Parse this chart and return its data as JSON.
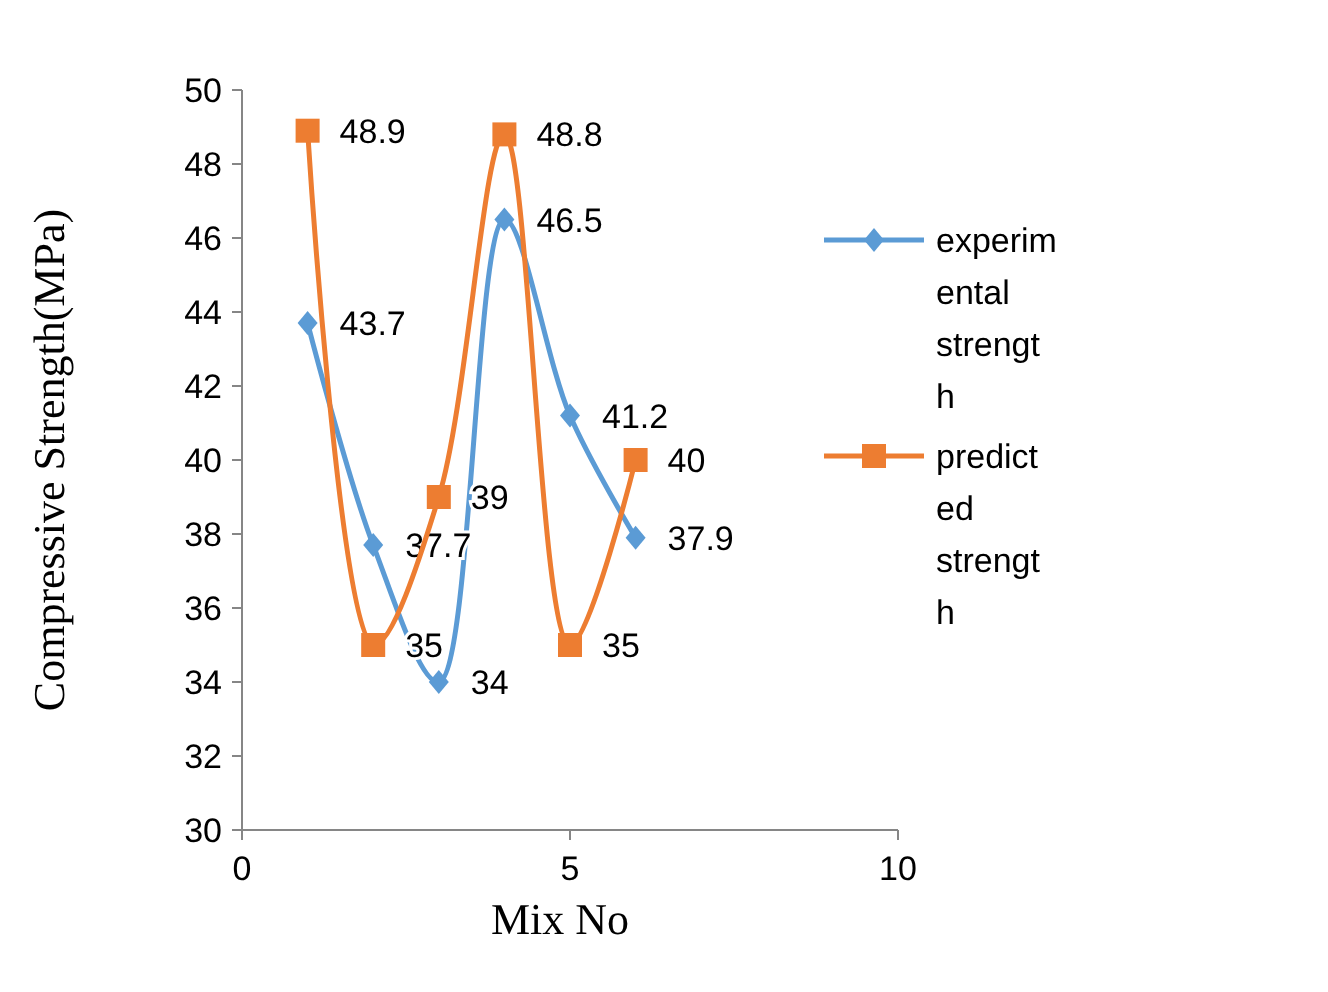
{
  "chart_data": {
    "type": "line",
    "xlabel": "Mix No",
    "ylabel": "Compressive Strength(MPa)",
    "x": [
      1,
      2,
      3,
      4,
      5,
      6
    ],
    "xlim": [
      0,
      10
    ],
    "xticks": [
      0,
      5,
      10
    ],
    "ylim": [
      30,
      50
    ],
    "yticks": [
      30,
      32,
      34,
      36,
      38,
      40,
      42,
      44,
      46,
      48,
      50
    ],
    "data_labels": true,
    "legend": "right",
    "line_style": "solid",
    "series": [
      {
        "name": "experimental strength",
        "color": "#5b9bd5",
        "marker": "diamond",
        "values": [
          43.7,
          37.7,
          34,
          46.5,
          41.2,
          37.9
        ]
      },
      {
        "name": "predicted strength",
        "color": "#ed7d31",
        "marker": "square",
        "values": [
          48.9,
          35,
          39,
          48.8,
          35,
          40
        ]
      }
    ]
  }
}
